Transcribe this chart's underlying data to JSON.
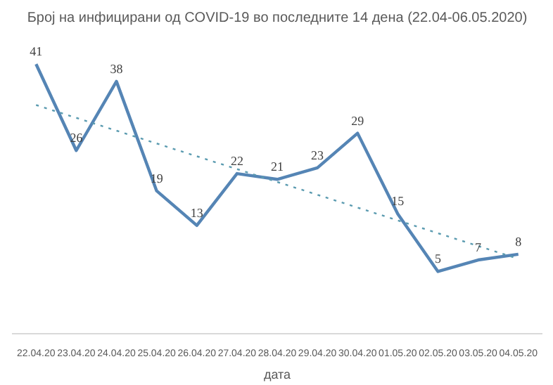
{
  "chart_data": {
    "type": "line",
    "title": "Број на инфицирани од COVID-19 во последните 14 дена (22.04-06.05.2020)",
    "xlabel": "дата",
    "categories": [
      "22.04.20",
      "23.04.20",
      "24.04.20",
      "25.04.20",
      "26.04.20",
      "27.04.20",
      "28.04.20",
      "29.04.20",
      "30.04.20",
      "01.05.20",
      "02.05.20",
      "03.05.20",
      "04.05.20"
    ],
    "series": [
      {
        "color": "#5585b5",
        "values": [
          41,
          26,
          38,
          19,
          13,
          22,
          21,
          23,
          29,
          15,
          5,
          7,
          8
        ],
        "line_style": "solid",
        "data_labels": true
      },
      {
        "color": "#5b9bb0",
        "type": "line",
        "x": [
          "22.04.20",
          "04.05.20"
        ],
        "values": [
          33.9,
          7.2
        ],
        "line_style": "dotted"
      }
    ],
    "grid": false
  }
}
